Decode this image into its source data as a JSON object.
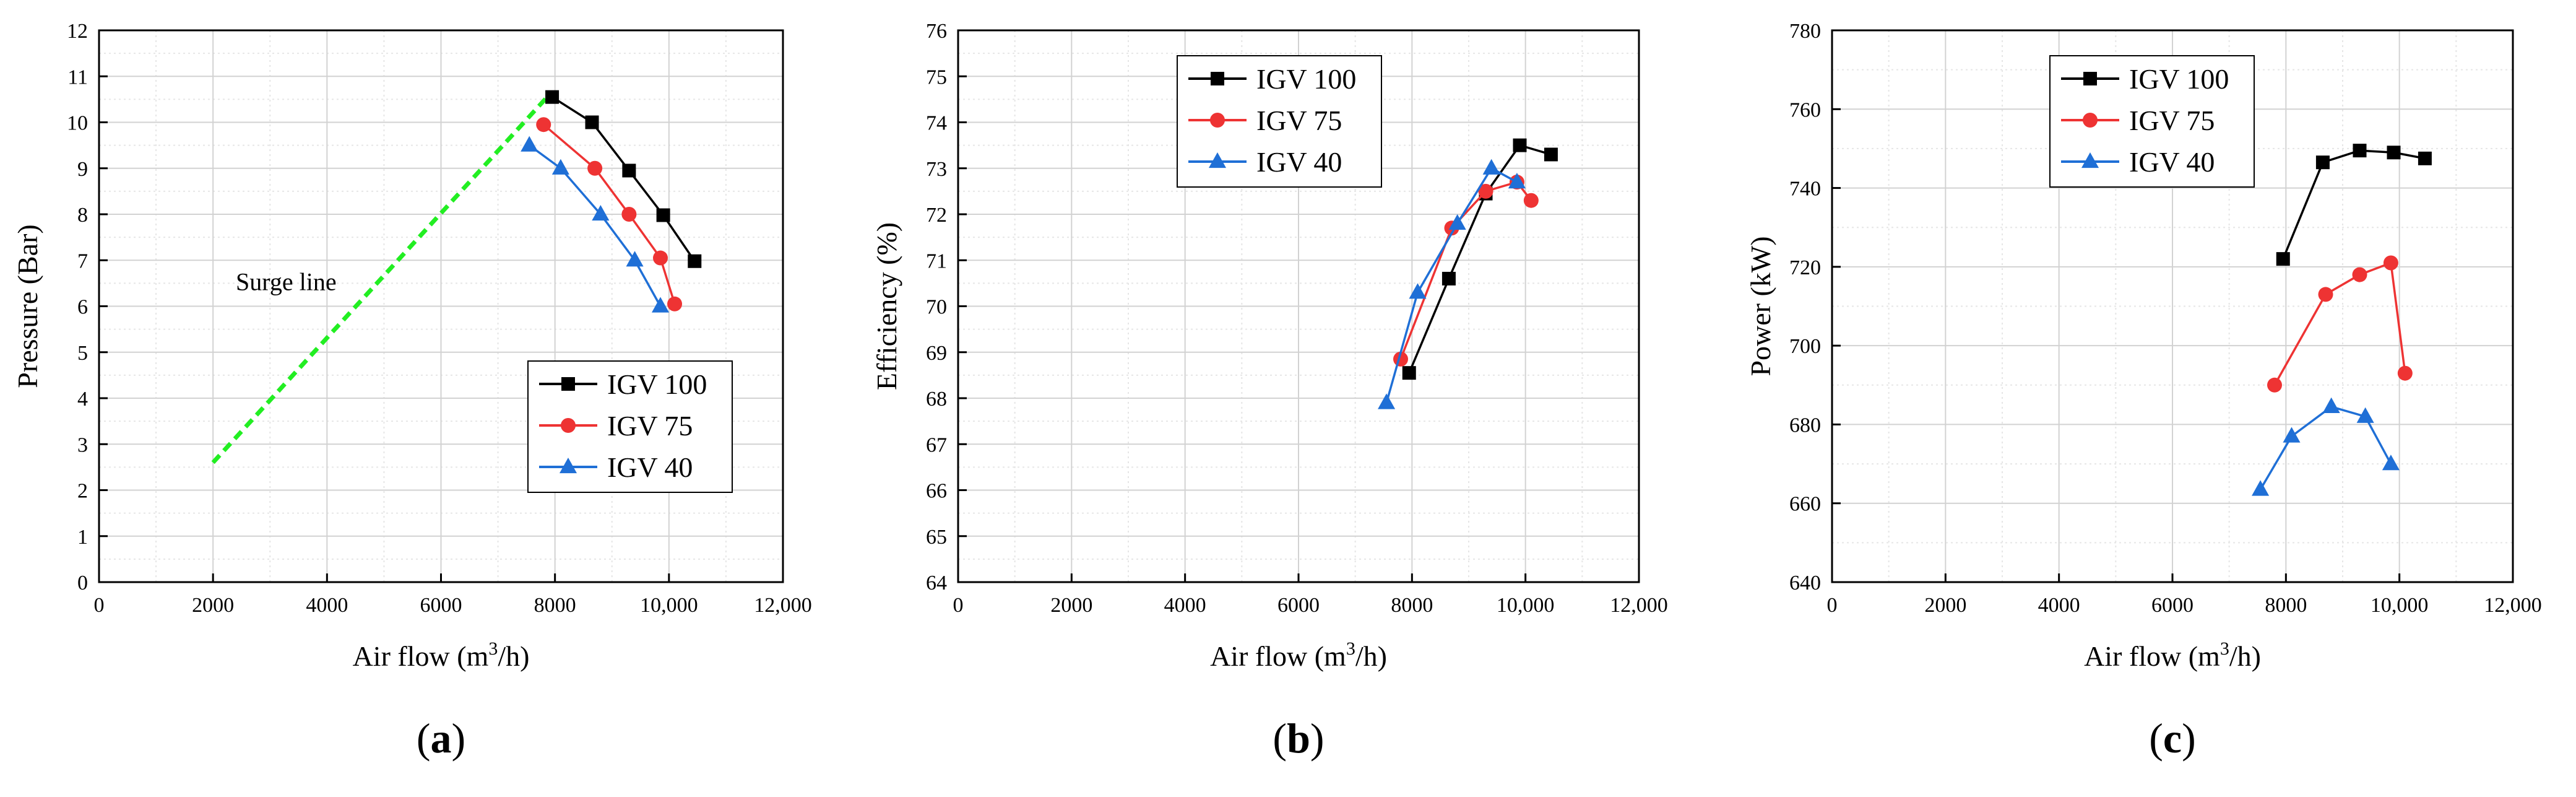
{
  "chart_data": [
    {
      "type": "line",
      "panel_label": "a",
      "xlabel": "Air flow (m3/h)",
      "ylabel": "Pressure (Bar)",
      "xlim": [
        0,
        12000
      ],
      "ylim": [
        0,
        12
      ],
      "x_ticks": [
        0,
        2000,
        4000,
        6000,
        8000,
        10000,
        12000
      ],
      "x_tick_labels": [
        "0",
        "2000",
        "4000",
        "6000",
        "8000",
        "10,000",
        "12,000"
      ],
      "y_ticks": [
        0,
        1,
        2,
        3,
        4,
        5,
        6,
        7,
        8,
        9,
        10,
        11,
        12
      ],
      "y_tick_labels": [
        "0",
        "1",
        "2",
        "3",
        "4",
        "5",
        "6",
        "7",
        "8",
        "9",
        "10",
        "11",
        "12"
      ],
      "grid": true,
      "legend_position": "bottom-right",
      "series": [
        {
          "name": "IGV 100",
          "color": "#000000",
          "marker": "square",
          "x": [
            7950,
            8650,
            9300,
            9900,
            10450
          ],
          "y": [
            10.55,
            10.0,
            8.95,
            7.98,
            6.98
          ]
        },
        {
          "name": "IGV 75",
          "color": "#ee3333",
          "marker": "circle",
          "x": [
            7800,
            8700,
            9300,
            9850,
            10100
          ],
          "y": [
            9.95,
            9.0,
            8.0,
            7.05,
            6.05
          ]
        },
        {
          "name": "IGV 40",
          "color": "#1f6fd6",
          "marker": "triangle",
          "x": [
            7550,
            8100,
            8800,
            9400,
            9850
          ],
          "y": [
            9.5,
            9.0,
            8.0,
            7.0,
            6.0
          ]
        }
      ],
      "lines": [
        {
          "name": "Surge line",
          "color": "#22ee22",
          "style": "dashed",
          "x": [
            2000,
            7900
          ],
          "y": [
            2.6,
            10.6
          ]
        }
      ],
      "annotations": [
        {
          "text": "Surge line",
          "x": 2400,
          "y": 6.35
        }
      ]
    },
    {
      "type": "line",
      "panel_label": "b",
      "xlabel": "Air flow (m3/h)",
      "ylabel": "Efficiency (%)",
      "xlim": [
        0,
        12000
      ],
      "ylim": [
        64,
        76
      ],
      "x_ticks": [
        0,
        2000,
        4000,
        6000,
        8000,
        10000,
        12000
      ],
      "x_tick_labels": [
        "0",
        "2000",
        "4000",
        "6000",
        "8000",
        "10,000",
        "12,000"
      ],
      "y_ticks": [
        64,
        65,
        66,
        67,
        68,
        69,
        70,
        71,
        72,
        73,
        74,
        75,
        76
      ],
      "y_tick_labels": [
        "64",
        "65",
        "66",
        "67",
        "68",
        "69",
        "70",
        "71",
        "72",
        "73",
        "74",
        "75",
        "76"
      ],
      "grid": true,
      "legend_position": "top-left",
      "series": [
        {
          "name": "IGV 100",
          "color": "#000000",
          "marker": "square",
          "x": [
            7950,
            8650,
            9300,
            9900,
            10450
          ],
          "y": [
            68.55,
            70.6,
            72.45,
            73.5,
            73.3
          ]
        },
        {
          "name": "IGV 75",
          "color": "#ee3333",
          "marker": "circle",
          "x": [
            7800,
            8700,
            9300,
            9850,
            10100
          ],
          "y": [
            68.85,
            71.7,
            72.5,
            72.7,
            72.3
          ]
        },
        {
          "name": "IGV 40",
          "color": "#1f6fd6",
          "marker": "triangle",
          "x": [
            7550,
            8100,
            8800,
            9400,
            9850
          ],
          "y": [
            67.9,
            70.3,
            71.8,
            73.0,
            72.7
          ]
        }
      ]
    },
    {
      "type": "line",
      "panel_label": "c",
      "xlabel": "Air flow (m3/h)",
      "ylabel": "Power (kW)",
      "xlim": [
        0,
        12000
      ],
      "ylim": [
        640,
        780
      ],
      "x_ticks": [
        0,
        2000,
        4000,
        6000,
        8000,
        10000,
        12000
      ],
      "x_tick_labels": [
        "0",
        "2000",
        "4000",
        "6000",
        "8000",
        "10,000",
        "12,000"
      ],
      "y_ticks": [
        640,
        660,
        680,
        700,
        720,
        740,
        760,
        780
      ],
      "y_tick_labels": [
        "640",
        "660",
        "680",
        "700",
        "720",
        "740",
        "760",
        "780"
      ],
      "grid": true,
      "legend_position": "top-left",
      "series": [
        {
          "name": "IGV 100",
          "color": "#000000",
          "marker": "square",
          "x": [
            7950,
            8650,
            9300,
            9900,
            10450
          ],
          "y": [
            722,
            746.5,
            749.5,
            749,
            747.5
          ]
        },
        {
          "name": "IGV 75",
          "color": "#ee3333",
          "marker": "circle",
          "x": [
            7800,
            8700,
            9300,
            9850,
            10100
          ],
          "y": [
            690,
            713,
            718,
            721,
            693
          ]
        },
        {
          "name": "IGV 40",
          "color": "#1f6fd6",
          "marker": "triangle",
          "x": [
            7550,
            8100,
            8800,
            9400,
            9850
          ],
          "y": [
            663.5,
            677,
            684.5,
            682,
            670
          ]
        }
      ]
    }
  ]
}
